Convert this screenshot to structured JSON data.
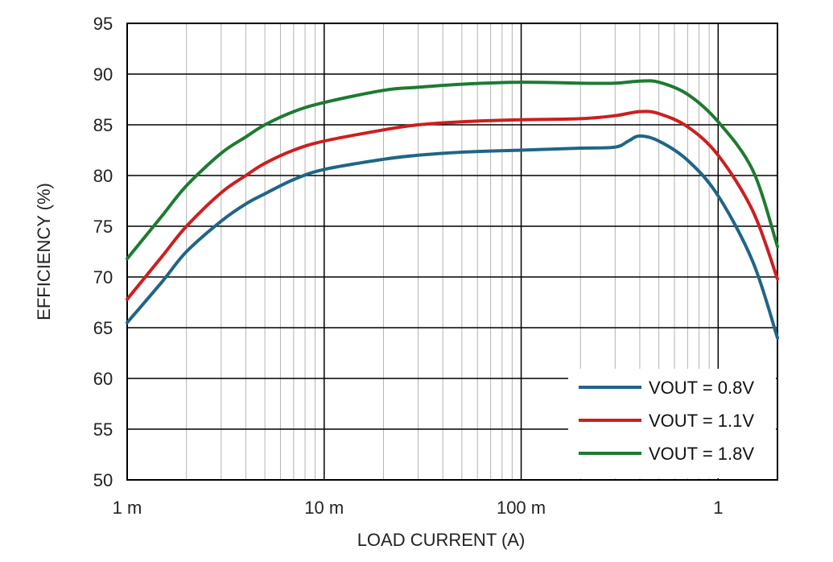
{
  "chart_data": {
    "type": "line",
    "xlabel": "LOAD CURRENT (A)",
    "ylabel": "EFFICIENCY (%)",
    "x_scale": "log",
    "xlim": [
      0.001,
      2
    ],
    "ylim": [
      50,
      95
    ],
    "y_ticks": [
      50,
      55,
      60,
      65,
      70,
      75,
      80,
      85,
      90,
      95
    ],
    "x_ticks": [
      {
        "value": 0.001,
        "label": "1 m"
      },
      {
        "value": 0.01,
        "label": "10 m"
      },
      {
        "value": 0.1,
        "label": "100 m"
      },
      {
        "value": 1,
        "label": "1"
      }
    ],
    "grid": true,
    "legend_position": "bottom-right",
    "series": [
      {
        "name": "VOUT = 0.8V",
        "color": "#1f6587",
        "points": [
          [
            0.001,
            65.5
          ],
          [
            0.0015,
            69.5
          ],
          [
            0.002,
            72.5
          ],
          [
            0.003,
            75.5
          ],
          [
            0.004,
            77.2
          ],
          [
            0.005,
            78.2
          ],
          [
            0.007,
            79.6
          ],
          [
            0.01,
            80.6
          ],
          [
            0.02,
            81.6
          ],
          [
            0.03,
            82.0
          ],
          [
            0.05,
            82.3
          ],
          [
            0.1,
            82.5
          ],
          [
            0.2,
            82.7
          ],
          [
            0.3,
            82.8
          ],
          [
            0.35,
            83.4
          ],
          [
            0.4,
            83.9
          ],
          [
            0.5,
            83.4
          ],
          [
            0.7,
            81.5
          ],
          [
            1.0,
            78.0
          ],
          [
            1.5,
            71.5
          ],
          [
            2.0,
            64.0
          ]
        ]
      },
      {
        "name": "VOUT = 1.1V",
        "color": "#cc1f1f",
        "points": [
          [
            0.001,
            67.8
          ],
          [
            0.0015,
            72.0
          ],
          [
            0.002,
            75.0
          ],
          [
            0.003,
            78.3
          ],
          [
            0.004,
            80.0
          ],
          [
            0.005,
            81.2
          ],
          [
            0.007,
            82.5
          ],
          [
            0.01,
            83.4
          ],
          [
            0.02,
            84.5
          ],
          [
            0.03,
            85.0
          ],
          [
            0.05,
            85.3
          ],
          [
            0.1,
            85.5
          ],
          [
            0.2,
            85.6
          ],
          [
            0.3,
            85.9
          ],
          [
            0.4,
            86.3
          ],
          [
            0.5,
            86.1
          ],
          [
            0.7,
            84.8
          ],
          [
            1.0,
            82.0
          ],
          [
            1.5,
            76.5
          ],
          [
            2.0,
            69.8
          ]
        ]
      },
      {
        "name": "VOUT = 1.8V",
        "color": "#1e7a32",
        "points": [
          [
            0.001,
            71.8
          ],
          [
            0.0015,
            76.0
          ],
          [
            0.002,
            79.0
          ],
          [
            0.003,
            82.2
          ],
          [
            0.004,
            83.8
          ],
          [
            0.005,
            85.0
          ],
          [
            0.007,
            86.3
          ],
          [
            0.01,
            87.2
          ],
          [
            0.02,
            88.4
          ],
          [
            0.03,
            88.7
          ],
          [
            0.05,
            89.0
          ],
          [
            0.1,
            89.2
          ],
          [
            0.2,
            89.1
          ],
          [
            0.3,
            89.1
          ],
          [
            0.4,
            89.3
          ],
          [
            0.5,
            89.2
          ],
          [
            0.7,
            88.0
          ],
          [
            1.0,
            85.3
          ],
          [
            1.5,
            80.5
          ],
          [
            2.0,
            73.0
          ]
        ]
      }
    ]
  }
}
